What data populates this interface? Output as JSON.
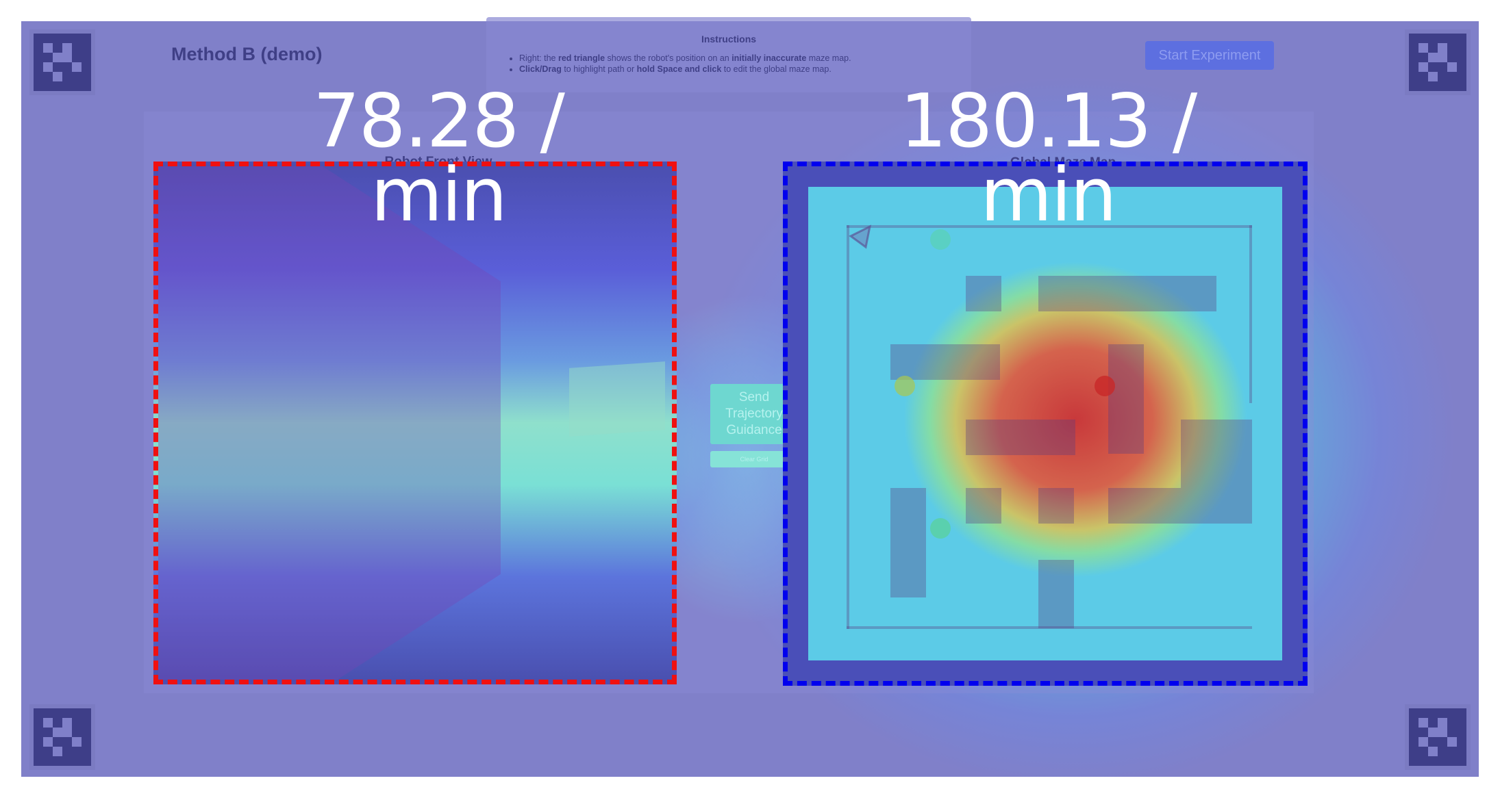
{
  "app": {
    "title": "Method B (demo)",
    "start_button": "Start Experiment"
  },
  "instructions": {
    "heading": "Instructions",
    "line1_prefix": "Right: the ",
    "line1_bold1": "red triangle",
    "line1_mid": " shows the robot's position on an ",
    "line1_bold2": "initially inaccurate",
    "line1_suffix": " maze map.",
    "line2_bold1": "Click/Drag",
    "line2_mid1": " to highlight path or ",
    "line2_bold2": "hold Space and click",
    "line2_suffix": " to edit the global maze map."
  },
  "views": {
    "front_label": "Robot Front View",
    "map_label": "Global Maze Map"
  },
  "metrics": {
    "left": "78.28 / min",
    "right": "180.13 / min"
  },
  "controls": {
    "send_label": "Send Trajectory Guidance",
    "clear_label": "Clear Grid"
  },
  "colors": {
    "front_view_outline": "#f01010",
    "map_view_outline": "#0000ee",
    "panel_bg": "#8080c9",
    "start_button_bg": "#5d6fe0",
    "send_button_bg": "#6ed7d0"
  },
  "icons": [
    "fiducial-marker-icon",
    "robot-triangle-icon",
    "goal-circle-icon"
  ]
}
